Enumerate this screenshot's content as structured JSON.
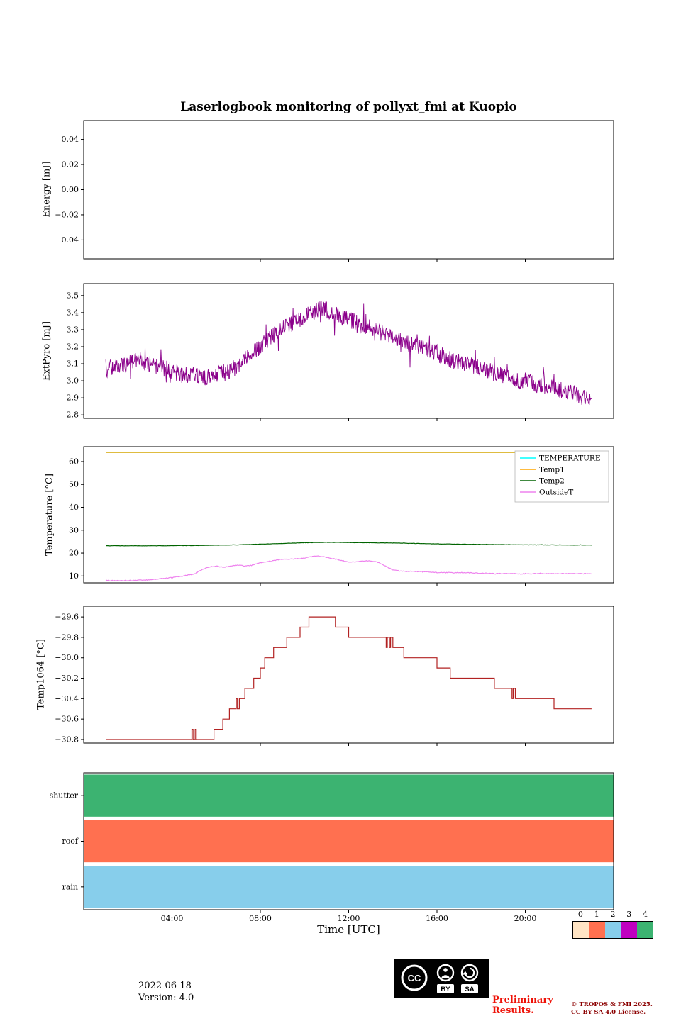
{
  "title": "Laserlogbook monitoring of pollyxt_fmi at Kuopio",
  "xlabel": "Time [UTC]",
  "x_axis": {
    "range": [
      0,
      24
    ],
    "tick_hours": [
      4,
      8,
      12,
      16,
      20
    ],
    "tick_labels": [
      "04:00",
      "08:00",
      "12:00",
      "16:00",
      "20:00"
    ]
  },
  "colorbar": {
    "tick_labels": [
      "0",
      "1",
      "2",
      "3",
      "4"
    ],
    "colors": [
      "#ffe4c4",
      "#ff7050",
      "#87ceeb",
      "#c000c0",
      "#3cb371"
    ]
  },
  "footer": {
    "date": "2022-06-18",
    "version": "Version: 4.0",
    "preliminary_line1": "Preliminary",
    "preliminary_line2": "Results.",
    "copyright_line1": "© TROPOS & FMI 2025.",
    "copyright_line2": "CC BY SA 4.0 License.",
    "license_badge": {
      "cc": "CC",
      "by": "BY",
      "sa": "SA"
    }
  },
  "chart_data": [
    {
      "type": "line",
      "ylabel": "Energy [mJ]",
      "ylim": [
        -0.055,
        0.055
      ],
      "ytick_values": [
        0.04,
        0.02,
        0.0,
        -0.02,
        -0.04
      ],
      "ytick_labels": [
        "0.04",
        "0.02",
        "0.00",
        "−0.02",
        "−0.04"
      ],
      "series": []
    },
    {
      "type": "line",
      "ylabel": "ExtPyro [mJ]",
      "ylim": [
        2.78,
        3.57
      ],
      "ytick_values": [
        3.5,
        3.4,
        3.3,
        3.2,
        3.1,
        3.0,
        2.9,
        2.8
      ],
      "ytick_labels": [
        "3.5",
        "3.4",
        "3.3",
        "3.2",
        "3.1",
        "3.0",
        "2.9",
        "2.8"
      ],
      "series": [
        {
          "name": "ExtPyro",
          "color": "#8b008b",
          "noise": 0.05,
          "seed": 7,
          "dt": 0.02,
          "width": 0.9,
          "keypoints": [
            [
              1,
              3.06
            ],
            [
              1.5,
              3.1
            ],
            [
              2,
              3.1
            ],
            [
              2.5,
              3.12
            ],
            [
              3,
              3.1
            ],
            [
              3.5,
              3.08
            ],
            [
              4,
              3.06
            ],
            [
              4.5,
              3.03
            ],
            [
              5,
              3.04
            ],
            [
              5.5,
              3.02
            ],
            [
              6,
              3.04
            ],
            [
              6.5,
              3.05
            ],
            [
              7,
              3.09
            ],
            [
              7.5,
              3.15
            ],
            [
              8,
              3.2
            ],
            [
              8.5,
              3.26
            ],
            [
              9,
              3.3
            ],
            [
              9.5,
              3.34
            ],
            [
              10,
              3.38
            ],
            [
              10.5,
              3.4
            ],
            [
              10.8,
              3.43
            ],
            [
              11.2,
              3.4
            ],
            [
              11.5,
              3.38
            ],
            [
              12,
              3.36
            ],
            [
              12.5,
              3.33
            ],
            [
              13,
              3.31
            ],
            [
              13.5,
              3.28
            ],
            [
              14,
              3.26
            ],
            [
              14.5,
              3.23
            ],
            [
              15,
              3.2
            ],
            [
              15.5,
              3.18
            ],
            [
              16,
              3.16
            ],
            [
              16.5,
              3.13
            ],
            [
              17,
              3.11
            ],
            [
              17.5,
              3.1
            ],
            [
              18,
              3.07
            ],
            [
              18.5,
              3.05
            ],
            [
              19,
              3.03
            ],
            [
              19.5,
              3.01
            ],
            [
              20,
              3.0
            ],
            [
              20.5,
              2.98
            ],
            [
              21,
              2.96
            ],
            [
              21.5,
              2.95
            ],
            [
              22,
              2.93
            ],
            [
              22.5,
              2.91
            ],
            [
              23,
              2.88
            ]
          ]
        }
      ]
    },
    {
      "type": "line",
      "ylabel": "Temperature [°C]",
      "ylim": [
        7,
        66.5
      ],
      "ytick_values": [
        60,
        50,
        40,
        30,
        20,
        10
      ],
      "ytick_labels": [
        "60",
        "50",
        "40",
        "30",
        "20",
        "10"
      ],
      "legend": {
        "position": "upper right"
      },
      "series": [
        {
          "name": "TEMPERATURE",
          "color": "#00ffff",
          "noise": 0,
          "seed": 1,
          "dt": 1,
          "width": 1.2,
          "keypoints": [
            [
              1,
              64
            ],
            [
              23,
              64
            ]
          ]
        },
        {
          "name": "Temp1",
          "color": "#ffa500",
          "noise": 0,
          "seed": 2,
          "dt": 1,
          "width": 1.2,
          "keypoints": [
            [
              1,
              64
            ],
            [
              23,
              64
            ]
          ]
        },
        {
          "name": "Temp2",
          "color": "#006400",
          "noise": 0.06,
          "seed": 3,
          "dt": 0.05,
          "width": 1.2,
          "keypoints": [
            [
              1,
              23.2
            ],
            [
              3,
              23.2
            ],
            [
              5,
              23.3
            ],
            [
              7,
              23.6
            ],
            [
              9,
              24.2
            ],
            [
              10,
              24.5
            ],
            [
              11,
              24.7
            ],
            [
              12,
              24.6
            ],
            [
              13,
              24.5
            ],
            [
              14,
              24.4
            ],
            [
              15,
              24.2
            ],
            [
              16,
              24.0
            ],
            [
              17,
              23.9
            ],
            [
              18,
              23.8
            ],
            [
              19,
              23.7
            ],
            [
              20,
              23.6
            ],
            [
              21,
              23.6
            ],
            [
              22,
              23.5
            ],
            [
              23,
              23.5
            ]
          ]
        },
        {
          "name": "OutsideT",
          "color": "#ee82ee",
          "noise": 0.16,
          "seed": 4,
          "dt": 0.04,
          "width": 1.2,
          "keypoints": [
            [
              1,
              8
            ],
            [
              2,
              8
            ],
            [
              3,
              8.3
            ],
            [
              4,
              9.3
            ],
            [
              4.5,
              10
            ],
            [
              5,
              10.8
            ],
            [
              5.3,
              12.5
            ],
            [
              5.6,
              13.8
            ],
            [
              6,
              14.3
            ],
            [
              6.3,
              13.8
            ],
            [
              6.6,
              14.2
            ],
            [
              7,
              14.8
            ],
            [
              7.3,
              14.3
            ],
            [
              7.6,
              14.6
            ],
            [
              8,
              15.8
            ],
            [
              8.5,
              16.5
            ],
            [
              9,
              17.3
            ],
            [
              9.5,
              17.4
            ],
            [
              10,
              17.8
            ],
            [
              10.5,
              18.8
            ],
            [
              10.8,
              18.5
            ],
            [
              11,
              18
            ],
            [
              11.5,
              17.2
            ],
            [
              12,
              16
            ],
            [
              12.3,
              16.2
            ],
            [
              12.8,
              16.6
            ],
            [
              13.2,
              16.4
            ],
            [
              13.5,
              15.2
            ],
            [
              14,
              12.6
            ],
            [
              14.5,
              12
            ],
            [
              15,
              12
            ],
            [
              15.5,
              11.8
            ],
            [
              16,
              11.5
            ],
            [
              17,
              11.5
            ],
            [
              18,
              11.2
            ],
            [
              19,
              11
            ],
            [
              20,
              11
            ],
            [
              21,
              11
            ],
            [
              22,
              11
            ],
            [
              23,
              11
            ]
          ]
        }
      ]
    },
    {
      "type": "step",
      "ylabel": "Temp1064 [°C]",
      "ylim": [
        -30.835,
        -29.495
      ],
      "ytick_values": [
        -29.6,
        -29.8,
        -30.0,
        -30.2,
        -30.4,
        -30.6,
        -30.8
      ],
      "ytick_labels": [
        "−29.6",
        "−29.8",
        "−30.0",
        "−30.2",
        "−30.4",
        "−30.6",
        "−30.8"
      ],
      "series": [
        {
          "name": "Temp1064",
          "color": "#b22222",
          "points": [
            [
              1.0,
              -30.8
            ],
            [
              4.85,
              -30.8
            ],
            [
              4.9,
              -30.7
            ],
            [
              4.95,
              -30.8
            ],
            [
              5.05,
              -30.7
            ],
            [
              5.1,
              -30.8
            ],
            [
              5.3,
              -30.8
            ],
            [
              5.9,
              -30.7
            ],
            [
              6.3,
              -30.6
            ],
            [
              6.6,
              -30.5
            ],
            [
              6.9,
              -30.4
            ],
            [
              6.95,
              -30.5
            ],
            [
              7.05,
              -30.4
            ],
            [
              7.3,
              -30.3
            ],
            [
              7.7,
              -30.2
            ],
            [
              8.0,
              -30.1
            ],
            [
              8.2,
              -30.0
            ],
            [
              8.6,
              -29.9
            ],
            [
              9.2,
              -29.8
            ],
            [
              9.8,
              -29.7
            ],
            [
              10.2,
              -29.6
            ],
            [
              11.4,
              -29.7
            ],
            [
              12.0,
              -29.8
            ],
            [
              13.7,
              -29.9
            ],
            [
              13.75,
              -29.8
            ],
            [
              13.85,
              -29.9
            ],
            [
              13.9,
              -29.8
            ],
            [
              14.0,
              -29.9
            ],
            [
              14.5,
              -30.0
            ],
            [
              16.0,
              -30.1
            ],
            [
              16.6,
              -30.2
            ],
            [
              18.6,
              -30.3
            ],
            [
              19.4,
              -30.4
            ],
            [
              19.45,
              -30.3
            ],
            [
              19.55,
              -30.4
            ],
            [
              21.3,
              -30.5
            ],
            [
              23.0,
              -30.5
            ]
          ]
        }
      ]
    },
    {
      "type": "status",
      "bars": [
        {
          "label": "shutter",
          "color": "#3cb371",
          "value": 4,
          "span": [
            0,
            24
          ]
        },
        {
          "label": "roof",
          "color": "#ff7050",
          "value": 1,
          "span": [
            0,
            24
          ]
        },
        {
          "label": "rain",
          "color": "#87ceeb",
          "value": 2,
          "span": [
            0,
            24
          ]
        }
      ]
    }
  ]
}
